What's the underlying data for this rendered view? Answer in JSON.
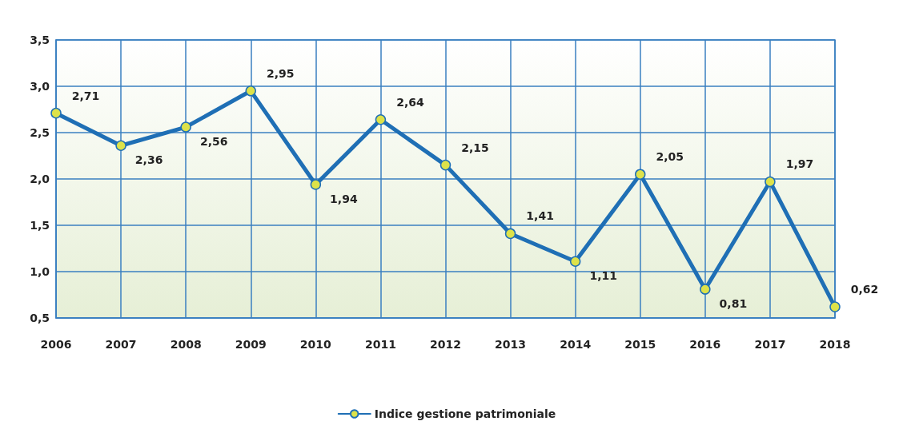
{
  "chart_data": {
    "type": "line",
    "categories": [
      "2006",
      "2007",
      "2008",
      "2009",
      "2010",
      "2011",
      "2012",
      "2013",
      "2014",
      "2015",
      "2016",
      "2017",
      "2018"
    ],
    "series": [
      {
        "name": "Indice gestione patrimoniale",
        "color": "#1f6fb5",
        "values": [
          2.71,
          2.36,
          2.56,
          2.95,
          1.94,
          2.64,
          2.15,
          1.41,
          1.11,
          2.05,
          0.81,
          1.97,
          0.62
        ],
        "value_labels": [
          "2,71",
          "2,36",
          "2,56",
          "2,95",
          "1,94",
          "2,64",
          "2,15",
          "1,41",
          "1,11",
          "2,05",
          "0,81",
          "1,97",
          "0,62"
        ]
      }
    ],
    "ylim": [
      0.5,
      3.5
    ],
    "yticks": [
      {
        "value": 0.5,
        "label": "0,5"
      },
      {
        "value": 1.0,
        "label": "1,0"
      },
      {
        "value": 1.5,
        "label": "1,5"
      },
      {
        "value": 2.0,
        "label": "2,0"
      },
      {
        "value": 2.5,
        "label": "2,5"
      },
      {
        "value": 3.0,
        "label": "3,0"
      },
      {
        "value": 3.5,
        "label": "3,5"
      }
    ],
    "grid": true,
    "legend": "bottom",
    "marker": "circle",
    "line_style": "solid"
  }
}
